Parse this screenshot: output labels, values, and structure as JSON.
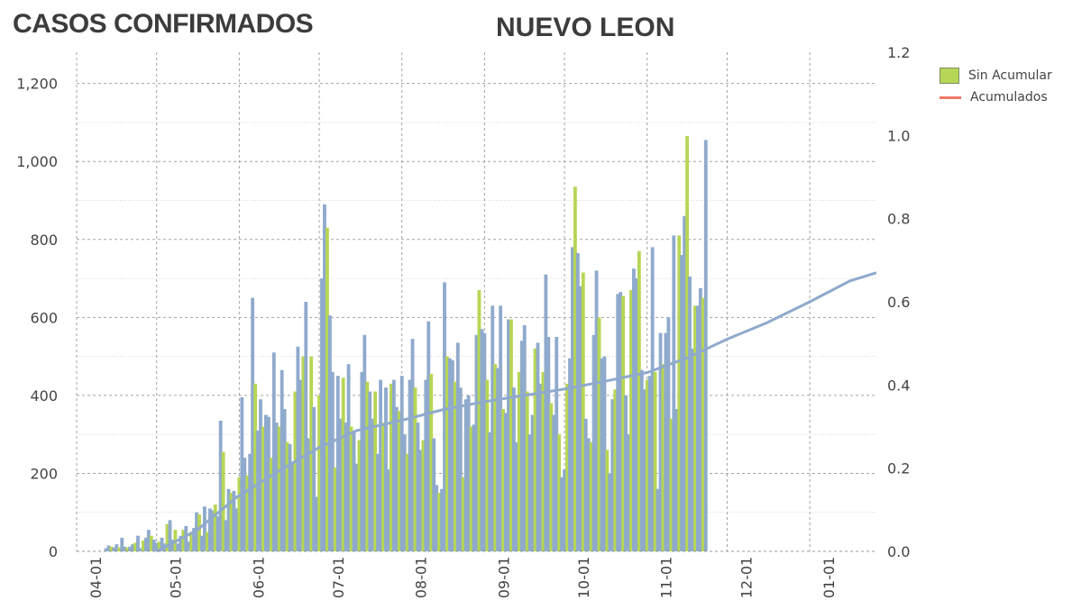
{
  "header": {
    "left_title": "CASOS CONFIRMADOS",
    "title": "NUEVO LEON"
  },
  "legend": {
    "items": [
      {
        "label": "Sin Acumular",
        "color": "#b6d655",
        "shape": "box"
      },
      {
        "label": "Acumulados",
        "color": "#f07868",
        "shape": "line"
      }
    ]
  },
  "colors": {
    "bar_green": "#b6d655",
    "bar_blue": "#8faacc",
    "line_blue": "#8faacc",
    "grid": "#9a9a9a",
    "text": "#444444"
  },
  "chart_data": {
    "type": "bar",
    "title": "NUEVO LEON",
    "xlabel": "",
    "ylabel": "",
    "x_tick_labels": [
      "04-01",
      "05-01",
      "06-01",
      "07-01",
      "08-01",
      "09-01",
      "10-01",
      "11-01",
      "12-01",
      "01-01"
    ],
    "x_tick_days": [
      0,
      30,
      61,
      91,
      122,
      153,
      183,
      214,
      244,
      275
    ],
    "xlim_days": [
      0,
      300
    ],
    "ylim_left": [
      0,
      1280
    ],
    "yticks_left": [
      0,
      200,
      400,
      600,
      800,
      1000,
      1200
    ],
    "ylim_right": [
      0,
      1.2
    ],
    "yticks_right": [
      0.0,
      0.2,
      0.4,
      0.6,
      0.8,
      1.0,
      1.2
    ],
    "grid": true,
    "legend_position": "top-right",
    "series": [
      {
        "name": "Sin Acumular",
        "type": "bar",
        "axis": "left",
        "values": [
          0,
          0,
          0,
          0,
          0,
          0,
          0,
          0,
          0,
          0,
          0,
          8,
          15,
          12,
          10,
          18,
          10,
          35,
          12,
          10,
          12,
          18,
          22,
          40,
          8,
          28,
          35,
          55,
          40,
          30,
          22,
          25,
          35,
          20,
          70,
          80,
          30,
          55,
          20,
          40,
          55,
          65,
          25,
          50,
          60,
          100,
          95,
          40,
          115,
          50,
          110,
          105,
          120,
          90,
          335,
          255,
          80,
          160,
          150,
          155,
          110,
          190,
          395,
          240,
          195,
          250,
          650,
          430,
          310,
          390,
          320,
          350,
          345,
          240,
          510,
          330,
          320,
          465,
          365,
          280,
          275,
          230,
          410,
          525,
          440,
          500,
          640,
          290,
          500,
          370,
          140,
          400,
          700,
          890,
          830,
          605,
          460,
          215,
          450,
          340,
          445,
          330,
          480,
          320,
          305,
          225,
          285,
          460,
          555,
          435,
          410,
          340,
          410,
          250,
          440,
          330,
          420,
          210,
          430,
          440,
          370,
          360,
          450,
          300,
          250,
          440,
          545,
          420,
          330,
          260,
          285,
          440,
          590,
          455,
          290,
          170,
          150,
          160,
          690,
          500,
          495,
          490,
          435,
          535,
          420,
          190,
          390,
          400,
          320,
          325,
          555,
          670,
          570,
          560,
          440,
          305,
          630,
          480,
          470,
          630,
          365,
          355,
          595,
          595,
          420,
          280,
          460,
          540,
          580,
          410,
          300,
          350,
          520,
          535,
          430,
          460,
          710,
          550,
          380,
          350,
          550,
          300,
          190,
          210,
          430,
          495,
          780,
          935,
          765,
          680,
          715,
          340,
          290,
          280,
          555,
          720,
          600,
          495,
          500,
          260,
          200,
          390,
          415,
          660,
          665,
          655,
          400,
          300,
          670,
          725,
          700,
          770,
          465,
          415,
          440,
          450,
          780,
          460,
          160,
          560,
          480,
          560,
          600,
          340,
          810,
          365,
          810,
          760,
          860,
          1065,
          705,
          520,
          630,
          630,
          675,
          650,
          1055
        ]
      },
      {
        "name": "Acumulados",
        "type": "line",
        "axis": "right",
        "points": [
          [
            30,
            0.0
          ],
          [
            45,
            0.05
          ],
          [
            60,
            0.13
          ],
          [
            75,
            0.19
          ],
          [
            91,
            0.25
          ],
          [
            105,
            0.29
          ],
          [
            122,
            0.315
          ],
          [
            137,
            0.34
          ],
          [
            153,
            0.36
          ],
          [
            168,
            0.375
          ],
          [
            183,
            0.39
          ],
          [
            199,
            0.41
          ],
          [
            214,
            0.43
          ],
          [
            229,
            0.465
          ],
          [
            244,
            0.51
          ],
          [
            259,
            0.55
          ],
          [
            275,
            0.6
          ],
          [
            290,
            0.65
          ],
          [
            300,
            0.67
          ]
        ]
      }
    ]
  }
}
